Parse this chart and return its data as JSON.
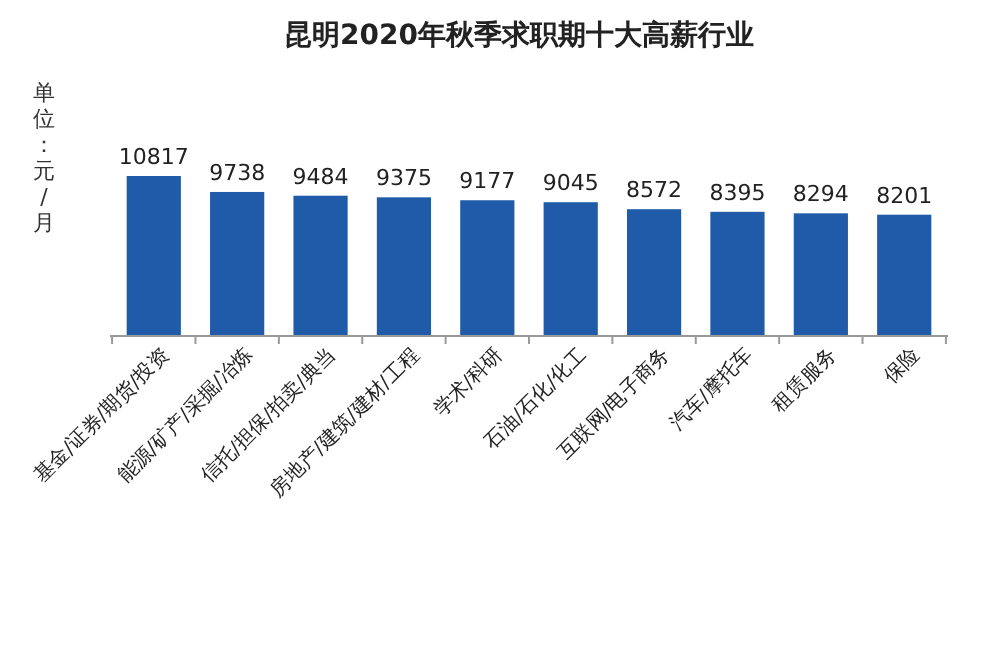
{
  "chart_data": {
    "type": "bar",
    "title": "昆明2020年秋季求职期十大高薪行业",
    "ylabel": "单位：元/月",
    "categories": [
      "基金/证券/期货/投资",
      "能源/矿产/采掘/冶炼",
      "信托/担保/拍卖/典当",
      "房地产/建筑/建材/工程",
      "学术/科研",
      "石油/石化/化工",
      "互联网/电子商务",
      "汽车/摩托车",
      "租赁服务",
      "保险"
    ],
    "values": [
      10817,
      9738,
      9484,
      9375,
      9177,
      9045,
      8572,
      8395,
      8294,
      8201
    ],
    "color": "#1f5ba8",
    "tick_labels": "x",
    "data_labels": true,
    "grid": false
  }
}
